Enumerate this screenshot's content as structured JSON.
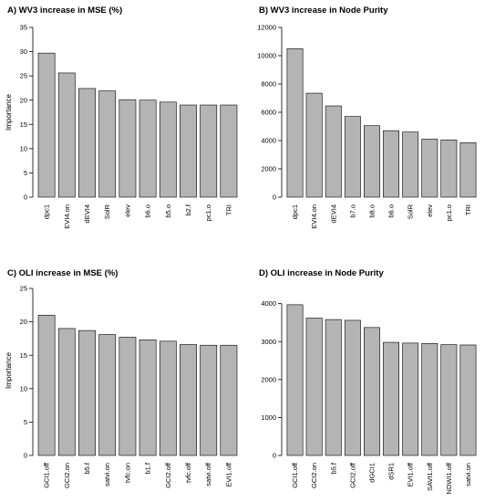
{
  "colors": {
    "bar_fill": "#b4b4b4",
    "bar_stroke": "#000000",
    "background": "#ffffff"
  },
  "chart_data": [
    {
      "type": "bar",
      "title": "A) WV3 increase in MSE (%)",
      "ylabel": "Importance",
      "categories": [
        "dpc1",
        "EVI4.on",
        "dEVI4",
        "SolR",
        "elev",
        "b6.o",
        "b5.o",
        "b2.f",
        "pc1.o",
        "TRI"
      ],
      "values": [
        29.7,
        25.6,
        22.4,
        21.9,
        20.1,
        20.0,
        19.6,
        19.0,
        19.0,
        19.0
      ],
      "ylim": [
        0,
        35
      ],
      "yticks": [
        0,
        5,
        10,
        15,
        20,
        25,
        30,
        35
      ]
    },
    {
      "type": "bar",
      "title": "B) WV3 increase in Node Purity",
      "ylabel": "",
      "categories": [
        "dpc1",
        "EVI4.on",
        "dEVI4",
        "b7.o",
        "b8.o",
        "b6.o",
        "SolR",
        "elev",
        "pc1.o",
        "TRI"
      ],
      "values": [
        10500,
        7350,
        6450,
        5700,
        5050,
        4700,
        4600,
        4100,
        4050,
        3850
      ],
      "ylim": [
        0,
        12000
      ],
      "yticks": [
        0,
        2000,
        4000,
        6000,
        8000,
        10000,
        12000
      ]
    },
    {
      "type": "bar",
      "title": "C) OLI increase in MSE (%)",
      "ylabel": "Importance",
      "categories": [
        "GCI1.off",
        "GCI2.on",
        "b5.f",
        "satvi.on",
        "tvfc.on",
        "b1.f",
        "GCI2.off",
        "tvfc.off",
        "satvi.off",
        "EVI1.off"
      ],
      "values": [
        21.0,
        19.0,
        18.7,
        18.1,
        17.7,
        17.3,
        17.1,
        16.6,
        16.5,
        16.5
      ],
      "ylim": [
        0,
        25
      ],
      "yticks": [
        0,
        5,
        10,
        15,
        20,
        25
      ]
    },
    {
      "type": "bar",
      "title": "D) OLI increase in Node Purity",
      "ylabel": "",
      "categories": [
        "GCI1.off",
        "GCI2.on",
        "b5.f",
        "GCI2.off",
        "dGCI1",
        "dSR1",
        "EVI1.off",
        "SAVI1.off",
        "NDWI1.off",
        "satvi.on"
      ],
      "values": [
        3970,
        3620,
        3580,
        3560,
        3370,
        2980,
        2960,
        2950,
        2920,
        2910
      ],
      "ylim": [
        0,
        4400
      ],
      "yticks": [
        0,
        1000,
        2000,
        3000,
        4000
      ]
    }
  ]
}
